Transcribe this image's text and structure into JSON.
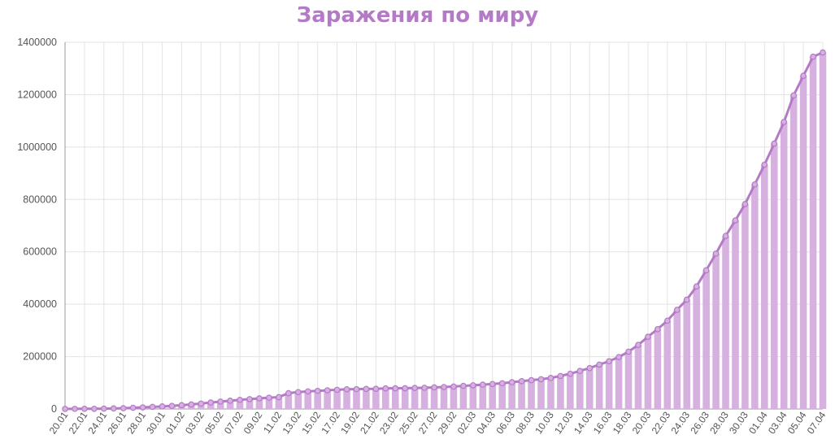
{
  "chart_data": {
    "type": "bar",
    "title": "Заражения по миру",
    "xlabel": "",
    "ylabel": "",
    "ylim": [
      0,
      1400000
    ],
    "yticks": [
      0,
      200000,
      400000,
      600000,
      800000,
      1000000,
      1200000,
      1400000
    ],
    "grid": true,
    "colors": {
      "title": "#b57ac7",
      "bar": "#d6b1e0",
      "line": "#b57ac7"
    },
    "categories": [
      "20.01",
      "21.01",
      "22.01",
      "23.01",
      "24.01",
      "25.01",
      "26.01",
      "27.01",
      "28.01",
      "29.01",
      "30.01",
      "31.01",
      "01.02",
      "02.02",
      "03.02",
      "04.02",
      "05.02",
      "06.02",
      "07.02",
      "08.02",
      "09.02",
      "10.02",
      "11.02",
      "12.02",
      "13.02",
      "14.02",
      "15.02",
      "16.02",
      "17.02",
      "18.02",
      "19.02",
      "20.02",
      "21.02",
      "22.02",
      "23.02",
      "24.02",
      "25.02",
      "26.02",
      "27.02",
      "28.02",
      "29.02",
      "01.03",
      "02.03",
      "03.03",
      "04.03",
      "05.03",
      "06.03",
      "07.03",
      "08.03",
      "09.03",
      "10.03",
      "11.03",
      "12.03",
      "13.03",
      "14.03",
      "15.03",
      "16.03",
      "17.03",
      "18.03",
      "19.03",
      "20.03",
      "21.03",
      "22.03",
      "23.03",
      "24.03",
      "25.03",
      "26.03",
      "27.03",
      "28.03",
      "29.03",
      "30.03",
      "31.03",
      "01.04",
      "02.04",
      "03.04",
      "04.04",
      "05.04",
      "06.04",
      "07.04"
    ],
    "tick_labels_shown": [
      "20.01",
      "22.01",
      "24.01",
      "26.01",
      "28.01",
      "30.01",
      "01.02",
      "03.02",
      "05.02",
      "07.02",
      "09.02",
      "11.02",
      "13.02",
      "15.02",
      "17.02",
      "19.02",
      "21.02",
      "23.02",
      "25.02",
      "27.02",
      "29.02",
      "02.03",
      "04.03",
      "06.03",
      "08.03",
      "10.03",
      "12.03",
      "14.03",
      "16.03",
      "18.03",
      "20.03",
      "22.03",
      "24.03",
      "26.03",
      "28.03",
      "30.03",
      "01.04",
      "03.04",
      "05.04",
      "07.04"
    ],
    "series": [
      {
        "type": "bar",
        "values": [
          300,
          400,
          600,
          700,
          1300,
          2000,
          2800,
          4600,
          6100,
          7800,
          9800,
          11900,
          14500,
          17300,
          20600,
          24600,
          28300,
          31500,
          34900,
          37600,
          40500,
          43100,
          45200,
          60400,
          64400,
          67100,
          69100,
          71300,
          73300,
          75200,
          75700,
          76700,
          77000,
          78600,
          79000,
          79400,
          80100,
          81000,
          82400,
          83800,
          85600,
          88200,
          90300,
          92800,
          95300,
          98200,
          102100,
          106200,
          109900,
          113600,
          118400,
          126100,
          134600,
          145200,
          156100,
          169400,
          182400,
          198200,
          218800,
          244500,
          275600,
          304900,
          336900,
          378600,
          417300,
          467700,
          529600,
          593300,
          660700,
          720100,
          782400,
          857500,
          932600,
          1013300,
          1095900,
          1197400,
          1272100,
          1345000,
          1361000
        ]
      },
      {
        "type": "line",
        "values": [
          300,
          400,
          600,
          700,
          1300,
          2000,
          2800,
          4600,
          6100,
          7800,
          9800,
          11900,
          14500,
          17300,
          20600,
          24600,
          28300,
          31500,
          34900,
          37600,
          40500,
          43100,
          45200,
          60400,
          64400,
          67100,
          69100,
          71300,
          73300,
          75200,
          75700,
          76700,
          77000,
          78600,
          79000,
          79400,
          80100,
          81000,
          82400,
          83800,
          85600,
          88200,
          90300,
          92800,
          95300,
          98200,
          102100,
          106200,
          109900,
          113600,
          118400,
          126100,
          134600,
          145200,
          156100,
          169400,
          182400,
          198200,
          218800,
          244500,
          275600,
          304900,
          336900,
          378600,
          417300,
          467700,
          529600,
          593300,
          660700,
          720100,
          782400,
          857500,
          932600,
          1013300,
          1095900,
          1197400,
          1272100,
          1345000,
          1361000
        ]
      }
    ]
  }
}
